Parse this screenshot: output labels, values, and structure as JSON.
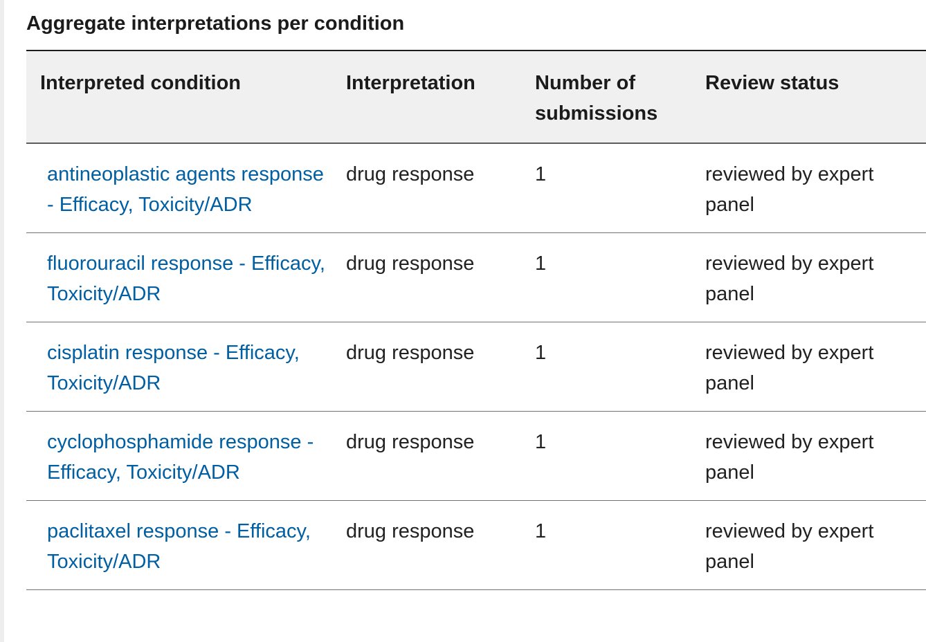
{
  "section": {
    "title": "Aggregate interpretations per condition"
  },
  "table": {
    "headers": {
      "condition": "Interpreted condition",
      "interpretation": "Interpretation",
      "submissions": "Number of submissions",
      "review_status": "Review status"
    },
    "rows": [
      {
        "condition": "antineoplastic agents response - Efficacy, Toxicity/ADR",
        "interpretation": "drug response",
        "submissions": "1",
        "review_status": "reviewed by expert panel"
      },
      {
        "condition": "fluorouracil response - Efficacy, Toxicity/ADR",
        "interpretation": "drug response",
        "submissions": "1",
        "review_status": "reviewed by expert panel"
      },
      {
        "condition": "cisplatin response - Efficacy, Toxicity/ADR",
        "interpretation": "drug response",
        "submissions": "1",
        "review_status": "reviewed by expert panel"
      },
      {
        "condition": "cyclophosphamide response - Efficacy, Toxicity/ADR",
        "interpretation": "drug response",
        "submissions": "1",
        "review_status": "reviewed by expert panel"
      },
      {
        "condition": "paclitaxel response - Efficacy, Toxicity/ADR",
        "interpretation": "drug response",
        "submissions": "1",
        "review_status": "reviewed by expert panel"
      }
    ]
  },
  "colors": {
    "link": "#005ea2",
    "header_bg": "#f0f0f0",
    "text": "#1b1b1b"
  }
}
